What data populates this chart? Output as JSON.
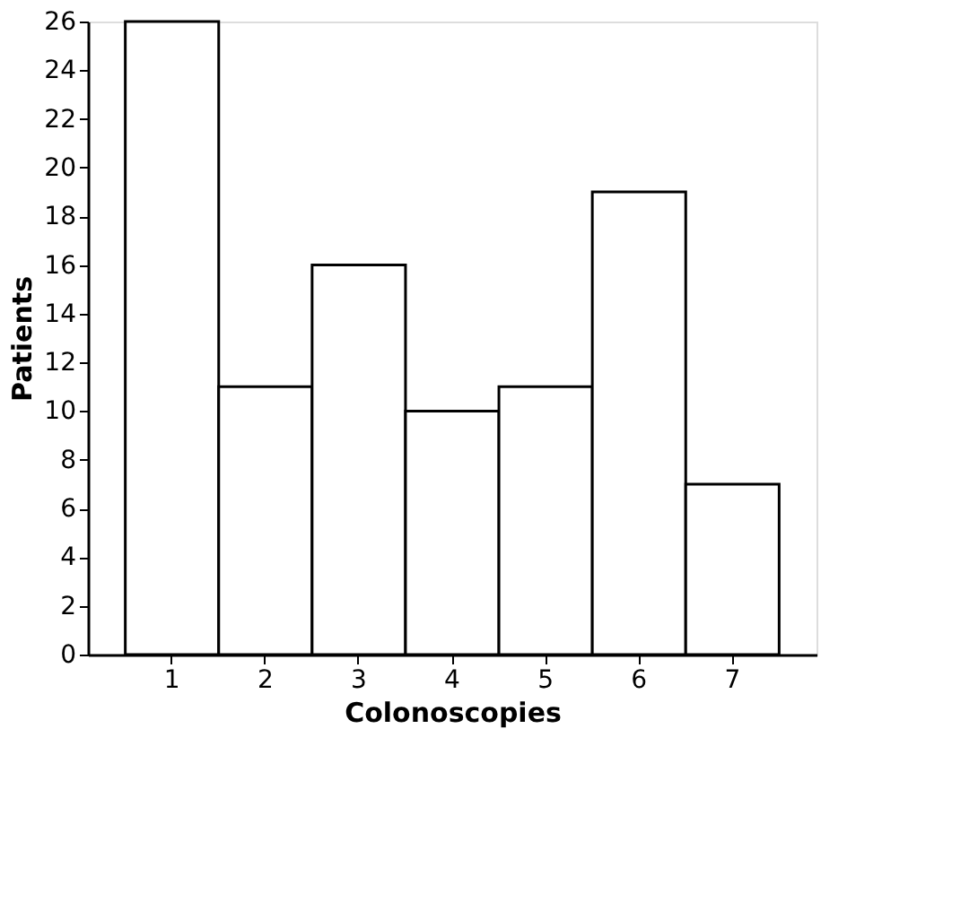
{
  "chart_data": {
    "type": "bar",
    "xlabel": "Colonoscopies",
    "ylabel": "Patients",
    "categories": [
      "1",
      "2",
      "3",
      "4",
      "5",
      "6",
      "7"
    ],
    "values": [
      26,
      11,
      16,
      10,
      11,
      19,
      7
    ],
    "color": "#ffffff",
    "ylim": [
      0,
      26
    ],
    "yticks": [
      0,
      2,
      4,
      6,
      8,
      10,
      12,
      14,
      16,
      18,
      20,
      22,
      24,
      26
    ],
    "grid": false
  }
}
